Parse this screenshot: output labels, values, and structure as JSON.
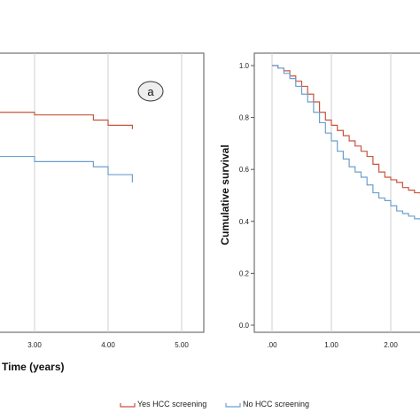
{
  "chart_data": [
    {
      "type": "line",
      "step": true,
      "panel_label": "a",
      "title": "",
      "xlabel": "Time (years)",
      "ylabel": "",
      "xlim": [
        0,
        5
      ],
      "ylim": [
        0,
        1
      ],
      "x_ticks": [
        {
          "value": 3,
          "label": "3.00"
        },
        {
          "value": 4,
          "label": "4.00"
        },
        {
          "value": 5,
          "label": "5.00"
        }
      ],
      "grid": "vertical",
      "series": [
        {
          "name": "Yes HCC screening",
          "color": "#c8553d",
          "points": [
            [
              0,
              0.82
            ],
            [
              3.0,
              0.82
            ],
            [
              3.0,
              0.81
            ],
            [
              3.8,
              0.81
            ],
            [
              3.8,
              0.79
            ],
            [
              4.0,
              0.79
            ],
            [
              4.0,
              0.77
            ],
            [
              4.33,
              0.77
            ],
            [
              4.33,
              0.755
            ]
          ]
        },
        {
          "name": "No HCC screening",
          "color": "#6b9fcf",
          "points": [
            [
              0,
              0.65
            ],
            [
              3.0,
              0.65
            ],
            [
              3.0,
              0.63
            ],
            [
              3.8,
              0.63
            ],
            [
              3.8,
              0.61
            ],
            [
              4.0,
              0.61
            ],
            [
              4.0,
              0.58
            ],
            [
              4.33,
              0.58
            ],
            [
              4.33,
              0.55
            ]
          ]
        }
      ]
    },
    {
      "type": "line",
      "step": true,
      "title": "",
      "xlabel": "",
      "ylabel": "Cumulative survival",
      "xlim": [
        0,
        2.5
      ],
      "ylim": [
        0,
        1
      ],
      "x_ticks": [
        {
          "value": 0,
          "label": ".00"
        },
        {
          "value": 1,
          "label": "1.00"
        },
        {
          "value": 2,
          "label": "2.00"
        }
      ],
      "y_ticks": [
        {
          "value": 0,
          "label": "0.0"
        },
        {
          "value": 0.2,
          "label": "0.2"
        },
        {
          "value": 0.4,
          "label": "0.4"
        },
        {
          "value": 0.6,
          "label": "0.6"
        },
        {
          "value": 0.8,
          "label": "0.8"
        },
        {
          "value": 1,
          "label": "1.0"
        }
      ],
      "grid": "vertical",
      "series": [
        {
          "name": "Yes HCC screening",
          "color": "#c8553d",
          "points": [
            [
              0,
              1.0
            ],
            [
              0.1,
              0.99
            ],
            [
              0.2,
              0.98
            ],
            [
              0.3,
              0.96
            ],
            [
              0.4,
              0.94
            ],
            [
              0.5,
              0.92
            ],
            [
              0.6,
              0.89
            ],
            [
              0.7,
              0.86
            ],
            [
              0.8,
              0.82
            ],
            [
              0.9,
              0.79
            ],
            [
              1.0,
              0.77
            ],
            [
              1.1,
              0.75
            ],
            [
              1.2,
              0.73
            ],
            [
              1.3,
              0.71
            ],
            [
              1.4,
              0.69
            ],
            [
              1.5,
              0.67
            ],
            [
              1.6,
              0.65
            ],
            [
              1.7,
              0.62
            ],
            [
              1.8,
              0.59
            ],
            [
              1.9,
              0.57
            ],
            [
              2.0,
              0.56
            ],
            [
              2.1,
              0.55
            ],
            [
              2.2,
              0.53
            ],
            [
              2.3,
              0.52
            ],
            [
              2.4,
              0.51
            ],
            [
              2.5,
              0.5
            ]
          ]
        },
        {
          "name": "No HCC screening",
          "color": "#6b9fcf",
          "points": [
            [
              0,
              1.0
            ],
            [
              0.1,
              0.99
            ],
            [
              0.2,
              0.97
            ],
            [
              0.3,
              0.95
            ],
            [
              0.4,
              0.92
            ],
            [
              0.5,
              0.89
            ],
            [
              0.6,
              0.86
            ],
            [
              0.7,
              0.82
            ],
            [
              0.8,
              0.78
            ],
            [
              0.9,
              0.74
            ],
            [
              1.0,
              0.71
            ],
            [
              1.1,
              0.67
            ],
            [
              1.2,
              0.64
            ],
            [
              1.3,
              0.61
            ],
            [
              1.4,
              0.59
            ],
            [
              1.5,
              0.57
            ],
            [
              1.6,
              0.54
            ],
            [
              1.7,
              0.51
            ],
            [
              1.8,
              0.49
            ],
            [
              1.9,
              0.48
            ],
            [
              2.0,
              0.46
            ],
            [
              2.1,
              0.44
            ],
            [
              2.2,
              0.43
            ],
            [
              2.3,
              0.42
            ],
            [
              2.4,
              0.41
            ],
            [
              2.5,
              0.4
            ]
          ]
        }
      ]
    }
  ]
}
